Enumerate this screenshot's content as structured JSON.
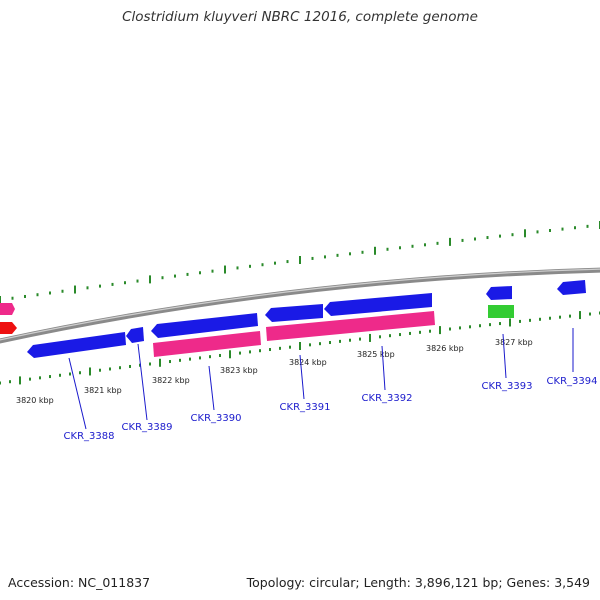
{
  "title": "Clostridium kluyveri NBRC 12016, complete genome",
  "accession": "Accession: NC_011837",
  "summary": "Topology: circular; Length: 3,896,121 bp; Genes: 3,549",
  "colors": {
    "backbone": "#8a8a8a",
    "forward_gene": "#1a1ae6",
    "rna_gene": "#ee2a8a",
    "red_gene": "#ee1111",
    "green_gene": "#33cc33",
    "ticks": "#2a8a2a",
    "gene_label": "#1a1acc"
  },
  "scale_labels": [
    "3820 kbp",
    "3821 kbp",
    "3822 kbp",
    "3823 kbp",
    "3824 kbp",
    "3825 kbp",
    "3826 kbp",
    "3827 kbp"
  ],
  "gene_labels": [
    "CKR_3388",
    "CKR_3389",
    "CKR_3390",
    "CKR_3391",
    "CKR_3392",
    "CKR_3393",
    "CKR_3394"
  ]
}
